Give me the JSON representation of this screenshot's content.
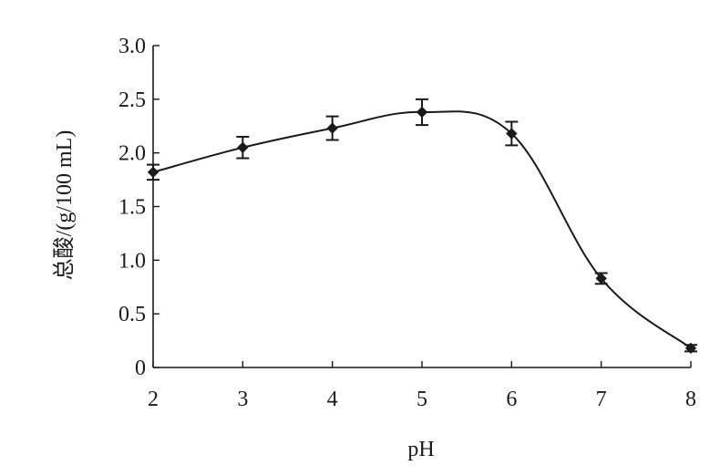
{
  "chart_data": {
    "type": "line",
    "xlabel": "pH",
    "ylabel": "总酸/(g/100 mL)",
    "xlim": [
      2,
      8
    ],
    "ylim": [
      0,
      3.0
    ],
    "x_ticks": [
      "2",
      "3",
      "4",
      "5",
      "6",
      "7",
      "8"
    ],
    "y_ticks": [
      "0",
      "0.5",
      "1.0",
      "1.5",
      "2.0",
      "2.5",
      "3.0"
    ],
    "grid": false,
    "legend": "none",
    "series": [
      {
        "x": [
          2,
          3,
          4,
          5,
          6,
          7,
          8
        ],
        "values": [
          1.82,
          2.05,
          2.23,
          2.38,
          2.18,
          0.83,
          0.18
        ],
        "error": [
          0.07,
          0.1,
          0.11,
          0.12,
          0.11,
          0.05,
          0.03
        ],
        "marker": "diamond",
        "color": "#1a1a1a"
      }
    ]
  }
}
